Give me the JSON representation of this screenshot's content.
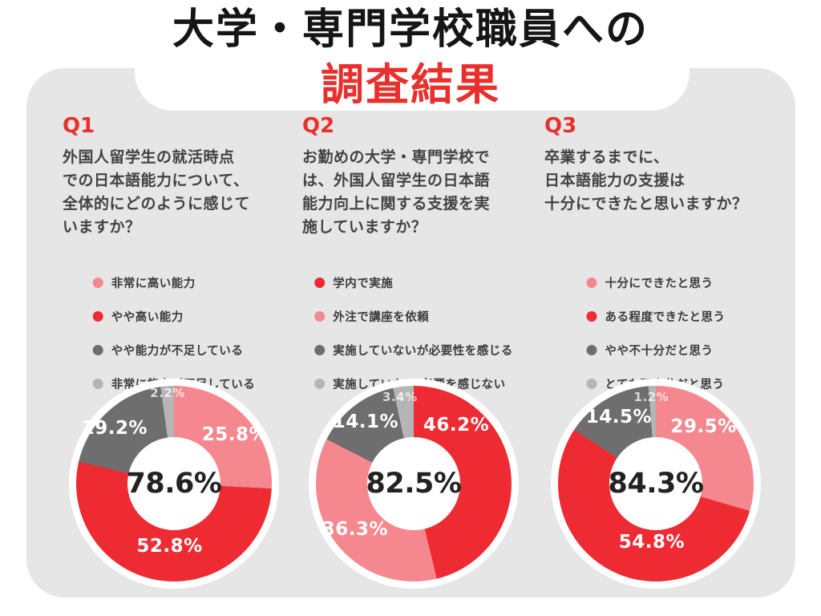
{
  "title": {
    "line1": "大学・専門学校職員への",
    "line2": "調査結果"
  },
  "colors": {
    "accent_red": "#E8302C",
    "chart_red": "#EE2B33",
    "chart_pink": "#F5878E",
    "chart_dark_gray": "#6E6E6E",
    "chart_light_gray": "#B5B5B5",
    "card_background": "#E6E6E6",
    "question_text": "#424242"
  },
  "questions": [
    {
      "id": "Q1",
      "text": "外国人留学生の就活時点\nでの日本語能力について、\n全体的にどのように感じて\nいますか？"
    },
    {
      "id": "Q2",
      "text": "お勤めの大学・専門学校で\nは、外国人留学生の日本語\n能力向上に関する支援を実\n施していますか？"
    },
    {
      "id": "Q3",
      "text": "卒業するまでに、\n日本語能力の支援は\n十分にできたと思いますか？"
    }
  ],
  "chart_data": [
    {
      "type": "pie",
      "donut": true,
      "question": "Q1",
      "title": "外国人留学生の就活時点での日本語能力について、全体的にどのように感じていますか？",
      "center_label": "78.6%",
      "legend_position": "above-chart",
      "start_angle_deg": 0,
      "direction": "clockwise",
      "slices": [
        {
          "label": "非常に高い能力",
          "value": 25.8,
          "color": "#F5878E",
          "label_angle": 51,
          "label_radius": 0.8
        },
        {
          "label": "やや高い能力",
          "value": 52.8,
          "color": "#EE2B33",
          "label_angle": 184,
          "label_radius": 0.64
        },
        {
          "label": "やや能力が不足している",
          "value": 19.2,
          "color": "#6E6E6E",
          "label_angle": 313,
          "label_radius": 0.83
        },
        {
          "label": "非常に能力が不足している",
          "value": 2.2,
          "color": "#B5B5B5",
          "label_angle": 356,
          "label_radius": 0.93
        }
      ]
    },
    {
      "type": "pie",
      "donut": true,
      "question": "Q2",
      "title": "お勤めの大学・専門学校では、外国人留学生の日本語能力向上に関する支援を実施していますか？",
      "center_label": "82.5%",
      "legend_position": "above-chart",
      "start_angle_deg": 0,
      "direction": "clockwise",
      "slices": [
        {
          "label": "学内で実施",
          "value": 46.2,
          "color": "#EE2B33",
          "label_angle": 36,
          "label_radius": 0.74
        },
        {
          "label": "外注で講座を依頼",
          "value": 36.3,
          "color": "#F5878E",
          "label_angle": 232,
          "label_radius": 0.76
        },
        {
          "label": "実施していないが必要性を感じる",
          "value": 14.1,
          "color": "#6E6E6E",
          "label_angle": 322,
          "label_radius": 0.8
        },
        {
          "label": "実施していない/必要を感じない",
          "value": 3.4,
          "color": "#B5B5B5",
          "label_angle": 351,
          "label_radius": 0.9
        }
      ]
    },
    {
      "type": "pie",
      "donut": true,
      "question": "Q3",
      "title": "卒業するまでに、日本語能力の支援は十分にできたと思いますか？",
      "center_label": "84.3%",
      "legend_position": "above-chart",
      "start_angle_deg": 0,
      "direction": "clockwise",
      "slices": [
        {
          "label": "十分にできたと思う",
          "value": 29.5,
          "color": "#F5878E",
          "label_angle": 40,
          "label_radius": 0.76
        },
        {
          "label": "ある程度できたと思う",
          "value": 54.8,
          "color": "#EE2B33",
          "label_angle": 184,
          "label_radius": 0.6
        },
        {
          "label": "やや不十分だと思う",
          "value": 14.5,
          "color": "#6E6E6E",
          "label_angle": 331,
          "label_radius": 0.78
        },
        {
          "label": "とても不十分だと思う",
          "value": 1.2,
          "color": "#B5B5B5",
          "label_angle": 357,
          "label_radius": 0.89
        }
      ]
    }
  ]
}
